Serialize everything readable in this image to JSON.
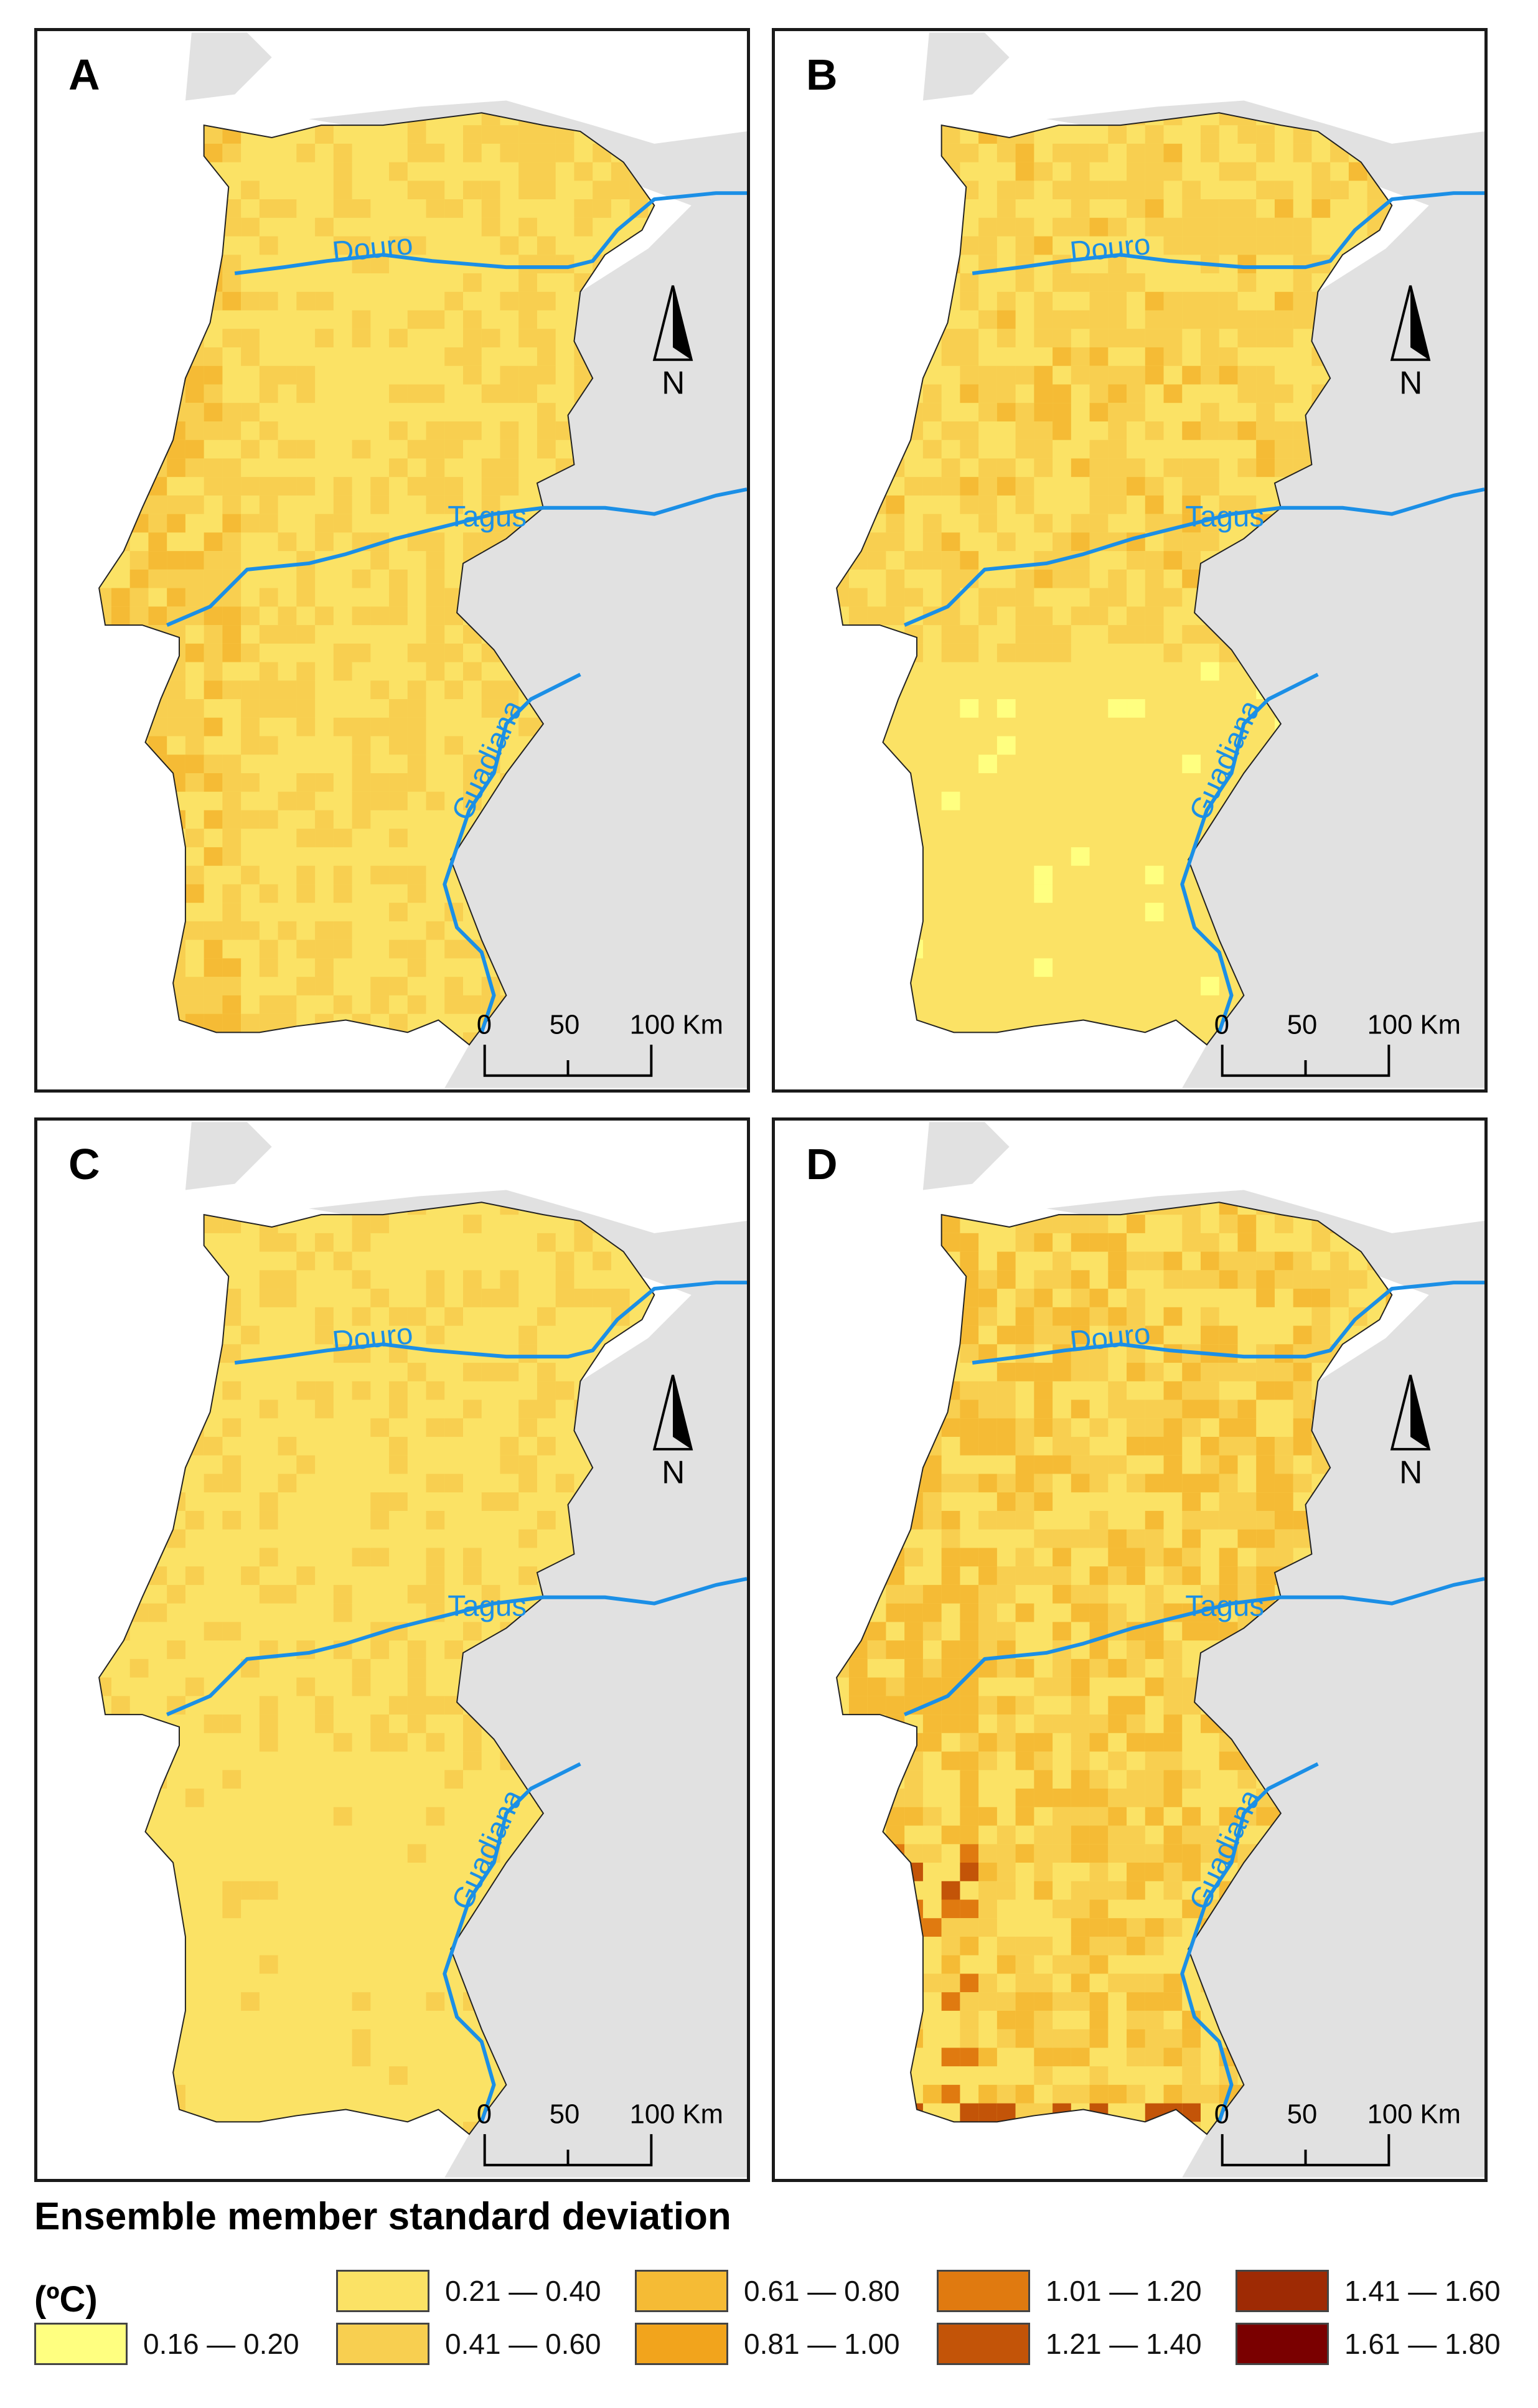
{
  "panels": [
    {
      "label": "A",
      "variant": "A"
    },
    {
      "label": "B",
      "variant": "B"
    },
    {
      "label": "C",
      "variant": "C"
    },
    {
      "label": "D",
      "variant": "D"
    }
  ],
  "rivers": {
    "douro": "Douro",
    "tagus": "Tagus",
    "guadiana": "Guadiana"
  },
  "north_arrow": "N",
  "scale_bar": {
    "ticks": [
      "0",
      "50",
      "100 Km"
    ]
  },
  "legend": {
    "title": "Ensemble member standard deviation",
    "unit": "(ºC)",
    "classes": [
      {
        "label": "0.16 — 0.20",
        "color": "#ffff80"
      },
      {
        "label": "0.21 — 0.40",
        "color": "#fbe265"
      },
      {
        "label": "0.41 — 0.60",
        "color": "#f8cf50"
      },
      {
        "label": "0.61 — 0.80",
        "color": "#f5bb35"
      },
      {
        "label": "0.81 — 1.00",
        "color": "#f2a41c"
      },
      {
        "label": "1.01 — 1.20",
        "color": "#e07a10"
      },
      {
        "label": "1.21 — 1.40",
        "color": "#c35408"
      },
      {
        "label": "1.41 — 1.60",
        "color": "#9e2a04"
      },
      {
        "label": "1.61 — 1.80",
        "color": "#7a0000"
      }
    ]
  },
  "colors": {
    "land_outside": "#e1e1e1",
    "river": "#1b8fe6",
    "sea": "#ffffff"
  }
}
